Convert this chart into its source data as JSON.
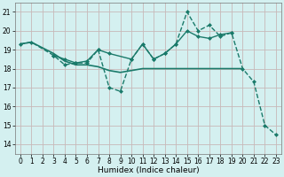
{
  "title": "",
  "xlabel": "Humidex (Indice chaleur)",
  "background_color": "#d4f0f0",
  "grid_color": "#c8b8b8",
  "line_color": "#1a7a6a",
  "xlim": [
    -0.5,
    23.5
  ],
  "ylim": [
    13.5,
    21.5
  ],
  "yticks": [
    14,
    15,
    16,
    17,
    18,
    19,
    20,
    21
  ],
  "xticks": [
    0,
    1,
    2,
    3,
    4,
    5,
    6,
    7,
    8,
    9,
    10,
    11,
    12,
    13,
    14,
    15,
    16,
    17,
    18,
    19,
    20,
    21,
    22,
    23
  ],
  "series": [
    {
      "x": [
        0,
        1,
        2,
        3,
        4,
        5,
        6,
        7,
        8,
        9,
        10,
        11,
        12,
        13,
        14,
        15,
        16,
        17,
        18,
        19,
        20
      ],
      "y": [
        19.3,
        19.4,
        19.1,
        18.8,
        18.4,
        18.2,
        18.2,
        18.1,
        17.9,
        17.8,
        17.9,
        18.0,
        18.0,
        18.0,
        18.0,
        18.0,
        18.0,
        18.0,
        18.0,
        18.0,
        18.0
      ],
      "style": "-",
      "marker": null,
      "linewidth": 1.2
    },
    {
      "x": [
        0,
        1,
        3,
        4,
        5,
        6,
        7,
        8,
        9,
        10,
        11,
        12,
        13,
        14,
        15,
        16,
        17,
        18,
        19,
        20,
        21,
        22,
        23
      ],
      "y": [
        19.3,
        19.4,
        18.7,
        18.2,
        18.3,
        18.3,
        19.0,
        17.0,
        16.8,
        18.5,
        19.3,
        18.5,
        18.8,
        19.3,
        21.0,
        20.0,
        20.3,
        19.7,
        19.9,
        18.0,
        17.3,
        15.0,
        14.5
      ],
      "style": "--",
      "marker": "D",
      "marker_size": 2.0,
      "linewidth": 1.0
    },
    {
      "x": [
        3,
        4,
        5,
        6,
        7,
        8,
        10,
        11,
        12,
        13,
        14,
        15,
        16,
        17,
        18,
        19
      ],
      "y": [
        18.7,
        18.5,
        18.3,
        18.4,
        19.0,
        18.8,
        18.5,
        19.3,
        18.5,
        18.8,
        19.3,
        20.0,
        19.7,
        19.6,
        19.8,
        19.9
      ],
      "style": "-",
      "marker": "D",
      "marker_size": 2.0,
      "linewidth": 1.0
    }
  ]
}
